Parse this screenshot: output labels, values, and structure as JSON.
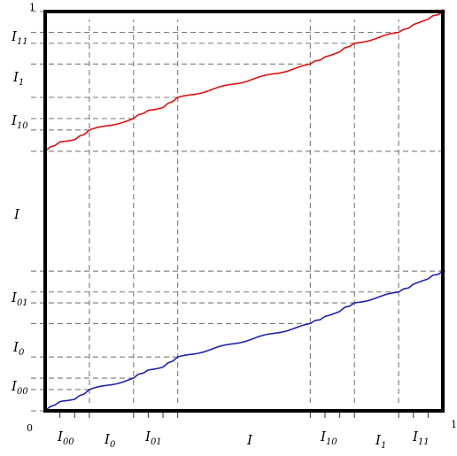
{
  "corner_labels": {
    "origin": "0",
    "x_end": "1",
    "y_end": "1"
  },
  "x_axis_labels": [
    {
      "base": "I",
      "sub": "00"
    },
    {
      "base": "I",
      "sub": "0"
    },
    {
      "base": "I",
      "sub": "01"
    },
    {
      "base": "I",
      "sub": ""
    },
    {
      "base": "I",
      "sub": "10"
    },
    {
      "base": "I",
      "sub": "1"
    },
    {
      "base": "I",
      "sub": "11"
    }
  ],
  "y_axis_labels": [
    {
      "base": "I",
      "sub": "11"
    },
    {
      "base": "I",
      "sub": "1"
    },
    {
      "base": "I",
      "sub": "10"
    },
    {
      "base": "I",
      "sub": ""
    },
    {
      "base": "I",
      "sub": "01"
    },
    {
      "base": "I",
      "sub": "0"
    },
    {
      "base": "I",
      "sub": "00"
    }
  ],
  "curves": [
    {
      "name": "upper",
      "color": "#e01010",
      "y_from": 0.65,
      "y_to": 1.0
    },
    {
      "name": "lower",
      "color": "#2020b0",
      "y_from": 0.0,
      "y_to": 0.35
    }
  ],
  "colors": {
    "frame": "#000000",
    "dashes": "#7a7a7a"
  }
}
